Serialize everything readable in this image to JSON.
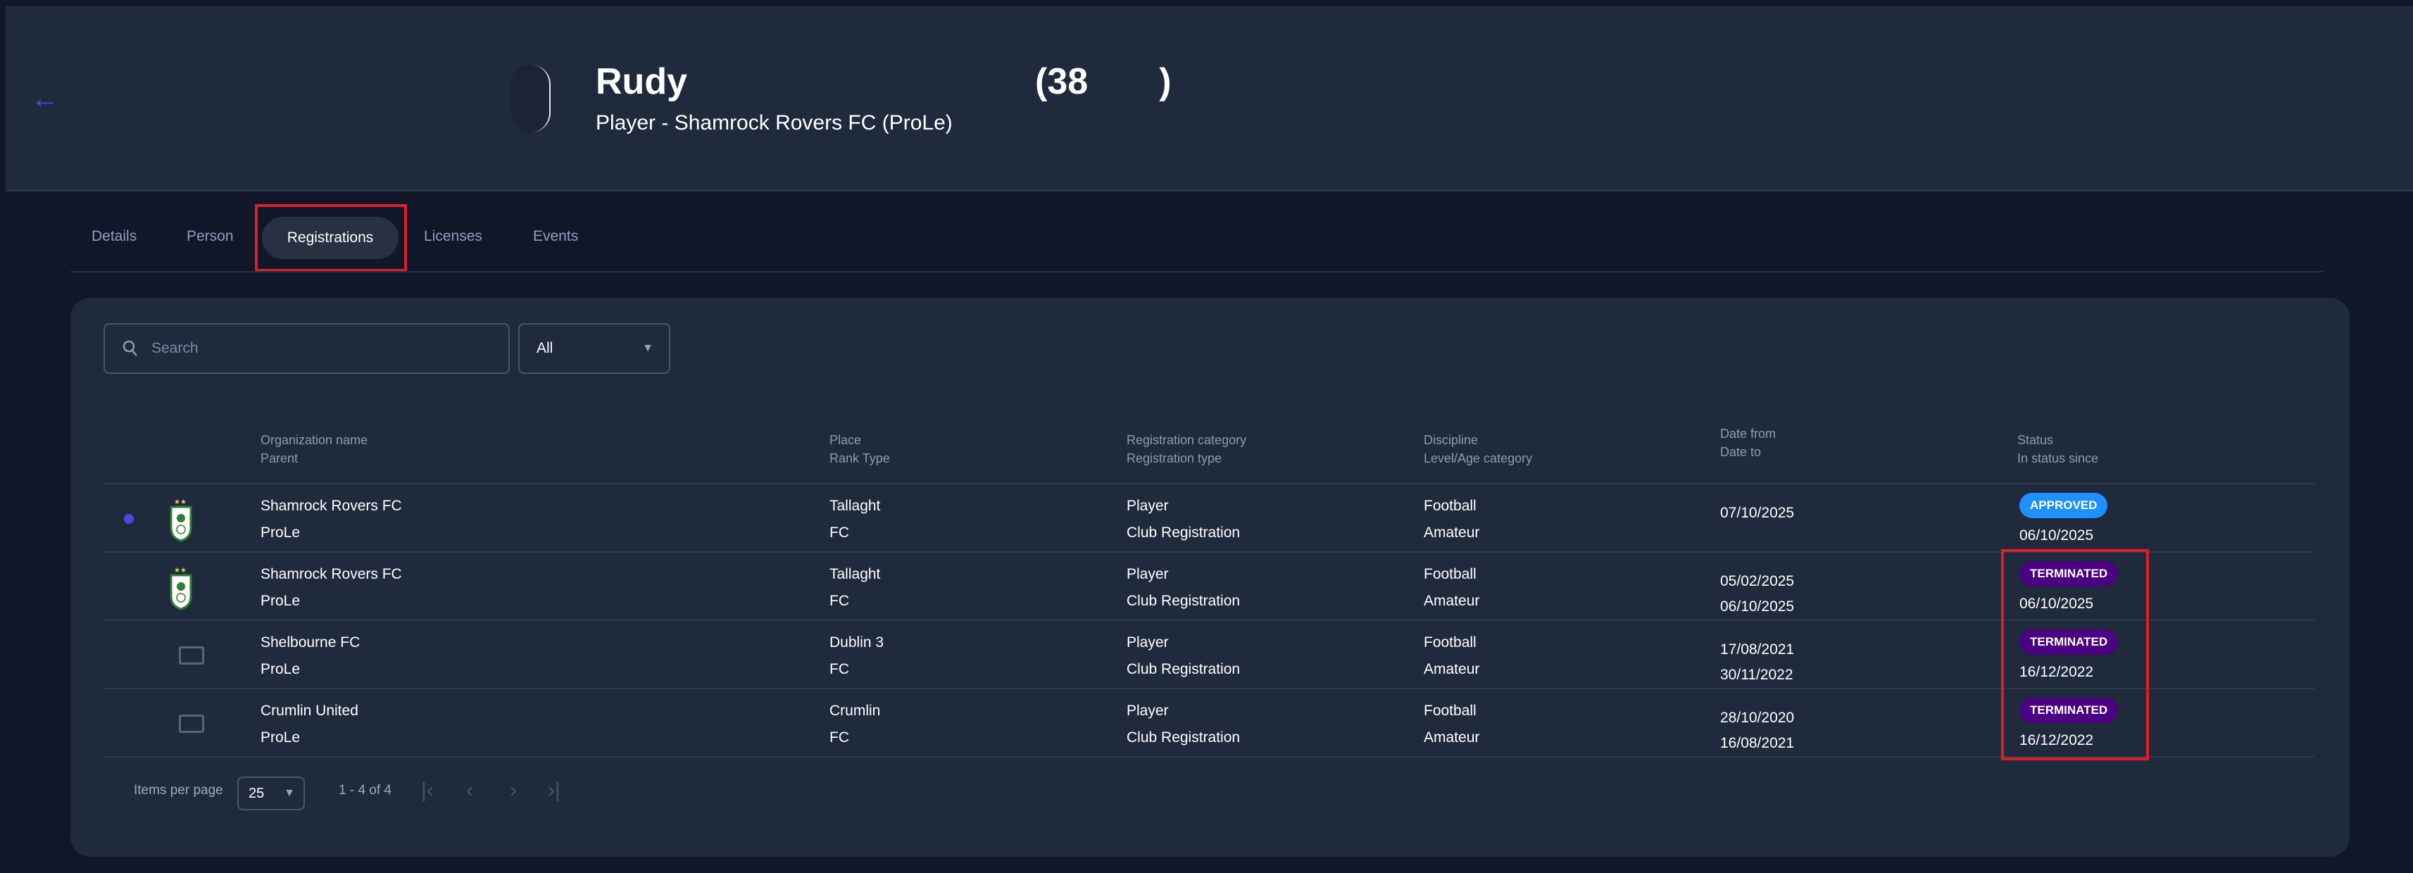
{
  "header": {
    "name": "Rudy",
    "age": "(38       )",
    "subtitle": "Player - Shamrock Rovers FC (ProLe)"
  },
  "tabs": [
    {
      "label": "Details"
    },
    {
      "label": "Person"
    },
    {
      "label": "Registrations",
      "active": true
    },
    {
      "label": "Licenses"
    },
    {
      "label": "Events"
    }
  ],
  "filters": {
    "search_placeholder": "Search",
    "status_value": "All"
  },
  "columns": [
    {
      "top": "Organization name",
      "bottom": "Parent"
    },
    {
      "top": "Place",
      "bottom": "Rank Type"
    },
    {
      "top": "Registration category",
      "bottom": "Registration type"
    },
    {
      "top": "Discipline",
      "bottom": "Level/Age category"
    },
    {
      "top": "Date from",
      "bottom": "Date to"
    },
    {
      "top": "Status",
      "bottom": "In status since"
    }
  ],
  "rows": [
    {
      "org": "Shamrock Rovers FC",
      "parent": "ProLe",
      "place": "Tallaght",
      "rank": "FC",
      "cat": "Player",
      "type": "Club Registration",
      "disc": "Football",
      "level": "Amateur",
      "from": "07/10/2025",
      "to": "",
      "status": "APPROVED",
      "since": "06/10/2025",
      "current": true,
      "logo": "shamrock-crest"
    },
    {
      "org": "Shamrock Rovers FC",
      "parent": "ProLe",
      "place": "Tallaght",
      "rank": "FC",
      "cat": "Player",
      "type": "Club Registration",
      "disc": "Football",
      "level": "Amateur",
      "from": "05/02/2025",
      "to": "06/10/2025",
      "status": "TERMINATED",
      "since": "06/10/2025",
      "logo": "shamrock-crest"
    },
    {
      "org": "Shelbourne FC",
      "parent": "ProLe",
      "place": "Dublin 3",
      "rank": "FC",
      "cat": "Player",
      "type": "Club Registration",
      "disc": "Football",
      "level": "Amateur",
      "from": "17/08/2021",
      "to": "30/11/2022",
      "status": "TERMINATED",
      "since": "16/12/2022",
      "logo": "image-placeholder"
    },
    {
      "org": "Crumlin United",
      "parent": "ProLe",
      "place": "Crumlin",
      "rank": "FC",
      "cat": "Player",
      "type": "Club Registration",
      "disc": "Football",
      "level": "Amateur",
      "from": "28/10/2020",
      "to": "16/08/2021",
      "status": "TERMINATED",
      "since": "16/12/2022",
      "logo": "image-placeholder"
    }
  ],
  "pagination": {
    "items_per_page_label": "Items per page",
    "items_per_page": "25",
    "range": "1 - 4 of 4"
  },
  "colors": {
    "approved": "#1e90ff",
    "terminated": "#4b0082",
    "accent": "#4f46e5",
    "highlight": "#e11d2a"
  }
}
